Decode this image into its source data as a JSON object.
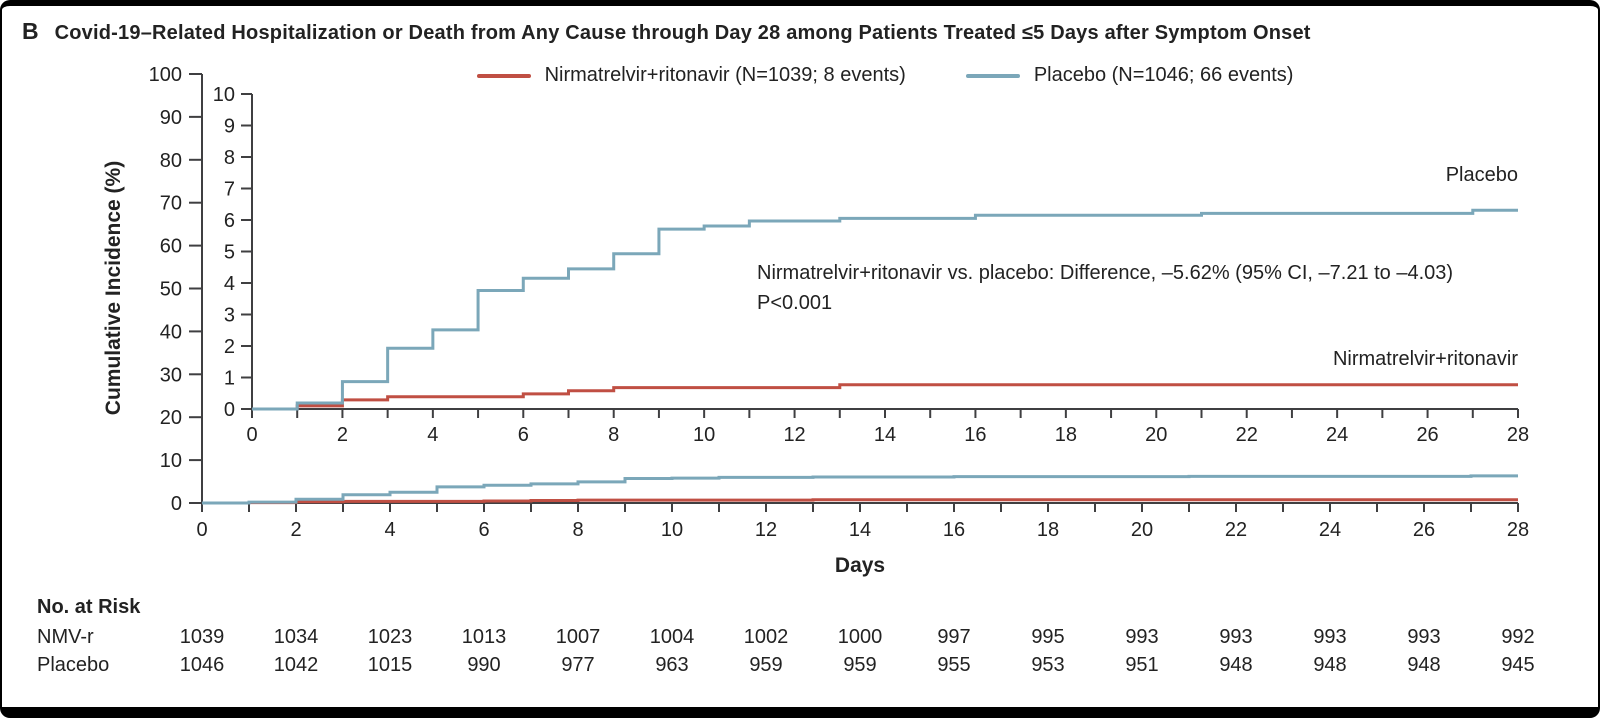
{
  "panel": {
    "letter": "B",
    "title": "Covid-19–Related Hospitalization or Death from Any Cause through Day 28 among Patients Treated ≤5 Days after Symptom Onset"
  },
  "colors": {
    "nmvr": "#c04f43",
    "placebo": "#7ba7b9",
    "axis": "#3f3f41",
    "text": "#222222"
  },
  "legend": {
    "nmvr_label": "Nirmatrelvir+ritonavir (N=1039; 8 events)",
    "placebo_label": "Placebo (N=1046; 66 events)"
  },
  "annotation": {
    "line1": "Nirmatrelvir+ritonavir vs. placebo: Difference, –5.62% (95% CI, –7.21 to –4.03)",
    "line2": "P<0.001"
  },
  "end_labels": {
    "placebo": "Placebo",
    "nmvr": "Nirmatrelvir+ritonavir"
  },
  "axes": {
    "y_outer": {
      "label": "Cumulative Incidence (%)",
      "min": 0,
      "max": 100,
      "step": 10
    },
    "y_inset": {
      "min": 0,
      "max": 10,
      "step": 1
    },
    "x": {
      "label": "Days",
      "min": 0,
      "max": 28,
      "tick_every": 1,
      "label_every": 2
    }
  },
  "at_risk": {
    "heading": "No. at Risk",
    "days": [
      0,
      2,
      4,
      6,
      8,
      10,
      12,
      14,
      16,
      18,
      20,
      22,
      24,
      26,
      28
    ],
    "rows": [
      {
        "label": "NMV-r",
        "values": [
          1039,
          1034,
          1023,
          1013,
          1007,
          1004,
          1002,
          1000,
          997,
          995,
          993,
          993,
          993,
          993,
          992
        ]
      },
      {
        "label": "Placebo",
        "values": [
          1046,
          1042,
          1015,
          990,
          977,
          963,
          959,
          959,
          955,
          953,
          951,
          948,
          948,
          948,
          945
        ]
      }
    ]
  },
  "chart_data": {
    "type": "line",
    "subtype": "step-post",
    "title": "Covid-19–Related Hospitalization or Death from Any Cause through Day 28 among Patients Treated ≤5 Days after Symptom Onset",
    "xlabel": "Days",
    "ylabel": "Cumulative Incidence (%)",
    "x_range": [
      0,
      28
    ],
    "outer_y_range": [
      0,
      100
    ],
    "inset_y_range": [
      0,
      10
    ],
    "legend_position": "top",
    "grid": false,
    "series": [
      {
        "name": "Nirmatrelvir+ritonavir",
        "color": "#c04f43",
        "n": 1039,
        "events": 8,
        "points": [
          [
            0,
            0
          ],
          [
            1,
            0.1
          ],
          [
            2,
            0.29
          ],
          [
            3,
            0.39
          ],
          [
            6,
            0.48
          ],
          [
            7,
            0.58
          ],
          [
            8,
            0.68
          ],
          [
            13,
            0.77
          ],
          [
            28,
            0.77
          ]
        ]
      },
      {
        "name": "Placebo",
        "color": "#7ba7b9",
        "n": 1046,
        "events": 66,
        "points": [
          [
            0,
            0
          ],
          [
            1,
            0.19
          ],
          [
            2,
            0.87
          ],
          [
            3,
            1.93
          ],
          [
            4,
            2.51
          ],
          [
            5,
            3.76
          ],
          [
            6,
            4.15
          ],
          [
            7,
            4.45
          ],
          [
            8,
            4.93
          ],
          [
            9,
            5.71
          ],
          [
            10,
            5.81
          ],
          [
            11,
            5.97
          ],
          [
            13,
            6.05
          ],
          [
            16,
            6.15
          ],
          [
            21,
            6.21
          ],
          [
            27,
            6.31
          ],
          [
            28,
            6.31
          ]
        ]
      }
    ]
  }
}
